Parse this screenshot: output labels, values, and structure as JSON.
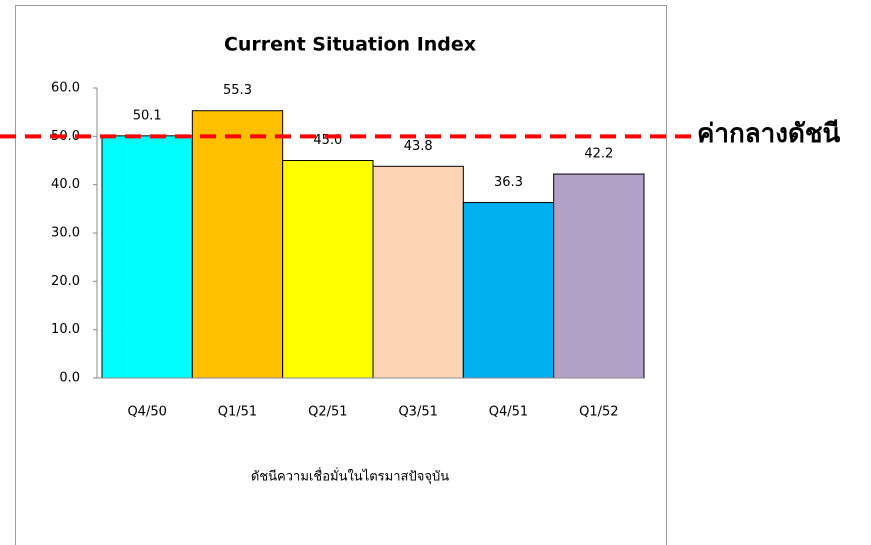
{
  "chart_data": {
    "type": "bar",
    "title": "Current Situation Index",
    "x_label": "ดัชนีความเชื่อมั่นในไตรมาสปัจจุบัน",
    "categories": [
      "Q4/50",
      "Q1/51",
      "Q2/51",
      "Q3/51",
      "Q4/51",
      "Q1/52"
    ],
    "values": [
      50.1,
      55.3,
      45.0,
      43.8,
      36.3,
      42.2
    ],
    "value_labels": [
      "50.1",
      "55.3",
      "45.0",
      "43.8",
      "36.3",
      "42.2"
    ],
    "colors": [
      "#00ffff",
      "#ffc000",
      "#ffff00",
      "#fbd5b5",
      "#00b0f0",
      "#b2a1c7"
    ],
    "ylim": [
      0,
      60
    ],
    "yticks": [
      {
        "value": 0,
        "label": "0.0"
      },
      {
        "value": 10,
        "label": "10.0"
      },
      {
        "value": 20,
        "label": "20.0"
      },
      {
        "value": 30,
        "label": "30.0"
      },
      {
        "value": 40,
        "label": "40.0"
      },
      {
        "value": 50,
        "label": "50.0"
      },
      {
        "value": 60,
        "label": "60.0"
      }
    ],
    "reference_line": {
      "value": 50,
      "label": "ค่ากลางดัชนี",
      "color": "#ff0000"
    }
  }
}
